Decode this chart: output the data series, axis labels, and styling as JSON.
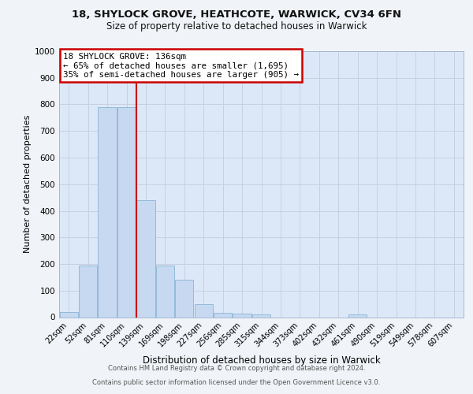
{
  "title": "18, SHYLOCK GROVE, HEATHCOTE, WARWICK, CV34 6FN",
  "subtitle": "Size of property relative to detached houses in Warwick",
  "xlabel": "Distribution of detached houses by size in Warwick",
  "ylabel": "Number of detached properties",
  "bar_labels": [
    "22sqm",
    "52sqm",
    "81sqm",
    "110sqm",
    "139sqm",
    "169sqm",
    "198sqm",
    "227sqm",
    "256sqm",
    "285sqm",
    "315sqm",
    "344sqm",
    "373sqm",
    "402sqm",
    "432sqm",
    "461sqm",
    "490sqm",
    "519sqm",
    "549sqm",
    "578sqm",
    "607sqm"
  ],
  "bar_values": [
    18,
    195,
    790,
    790,
    440,
    195,
    140,
    48,
    15,
    12,
    10,
    0,
    0,
    0,
    0,
    10,
    0,
    0,
    0,
    0,
    0
  ],
  "bar_color": "#c6d9f0",
  "bar_edge_color": "#8ab4d4",
  "vline_color": "#cc0000",
  "ylim": [
    0,
    1000
  ],
  "yticks": [
    0,
    100,
    200,
    300,
    400,
    500,
    600,
    700,
    800,
    900,
    1000
  ],
  "annotation_title": "18 SHYLOCK GROVE: 136sqm",
  "annotation_line1": "← 65% of detached houses are smaller (1,695)",
  "annotation_line2": "35% of semi-detached houses are larger (905) →",
  "annotation_box_color": "#ffffff",
  "annotation_box_edge_color": "#cc0000",
  "grid_color": "#c8d0e0",
  "bg_color": "#dce8f8",
  "fig_bg_color": "#f0f4f8",
  "footer_line1": "Contains HM Land Registry data © Crown copyright and database right 2024.",
  "footer_line2": "Contains public sector information licensed under the Open Government Licence v3.0."
}
